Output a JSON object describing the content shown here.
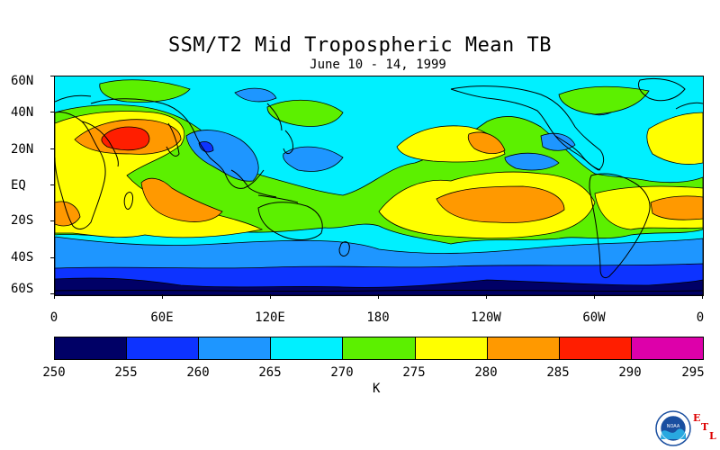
{
  "header": {
    "title": "SSM/T2 Mid Tropospheric Mean TB",
    "subtitle": "June 10 - 14, 1999"
  },
  "map": {
    "lat_labels": [
      "60N",
      "40N",
      "20N",
      "EQ",
      "20S",
      "40S",
      "60S"
    ],
    "lon_labels": [
      "0",
      "60E",
      "120E",
      "180",
      "120W",
      "60W",
      "0"
    ],
    "projection": "cylindrical equidistant",
    "extent": "60S-60N, 0-360"
  },
  "colorbar": {
    "ticks": [
      "250",
      "255",
      "260",
      "265",
      "270",
      "275",
      "280",
      "285",
      "290",
      "295"
    ],
    "colors": [
      "#000066",
      "#0d33ff",
      "#1e96ff",
      "#00f0ff",
      "#5cf000",
      "#ffff00",
      "#ff9900",
      "#ff1e00",
      "#dd00aa"
    ],
    "unit": "K"
  },
  "logo": {
    "name": "NOAA",
    "lab": [
      "E",
      "T",
      "L"
    ]
  }
}
